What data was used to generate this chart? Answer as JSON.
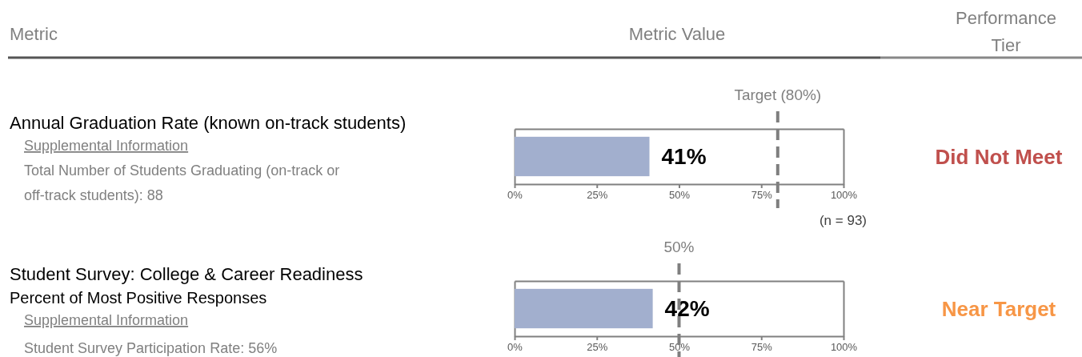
{
  "chart_data": [
    {
      "type": "other",
      "annotations": [
        "Metric",
        "Metric Value",
        "Performance Tier"
      ]
    },
    {
      "type": "bar",
      "orientation": "horizontal",
      "categories": [
        null
      ],
      "values": [
        41
      ],
      "color": "#a2afce",
      "value_labels": [
        "41%"
      ],
      "xlim": [
        0,
        100
      ],
      "xticks": [
        {
          "value": 0,
          "label": "0%"
        },
        {
          "value": 25,
          "label": "25%"
        },
        {
          "value": 50,
          "label": "50%"
        },
        {
          "value": 75,
          "label": "75%"
        },
        {
          "value": 100,
          "label": "100%"
        }
      ],
      "ref_lines": [
        {
          "axis": "x",
          "value": 80,
          "label": "Target (80%)",
          "color": "#7f7f7f",
          "line_style": "dashed"
        }
      ],
      "annotations": [
        "Annual Graduation Rate (known on-track students)",
        "Supplemental Information",
        "Total Number of Students Graduating (on-track or off-track students):  88",
        "(n = 93)",
        "Did Not Meet"
      ]
    },
    {
      "type": "bar",
      "orientation": "horizontal",
      "categories": [
        null
      ],
      "values": [
        42
      ],
      "color": "#a2afce",
      "value_labels": [
        "42%"
      ],
      "xlim": [
        0,
        100
      ],
      "xticks": [
        {
          "value": 0,
          "label": "0%"
        },
        {
          "value": 25,
          "label": "25%"
        },
        {
          "value": 50,
          "label": "50%"
        },
        {
          "value": 75,
          "label": "75%"
        },
        {
          "value": 100,
          "label": "100%"
        }
      ],
      "ref_lines": [
        {
          "axis": "x",
          "value": 50,
          "label": "50%",
          "color": "#7f7f7f",
          "line_style": "dashed"
        }
      ],
      "annotations": [
        "Student Survey: College & Career Readiness",
        "Percent of Most Positive Responses",
        "Supplemental Information",
        "Student Survey Participation Rate:  56%",
        "Near Target"
      ]
    }
  ]
}
